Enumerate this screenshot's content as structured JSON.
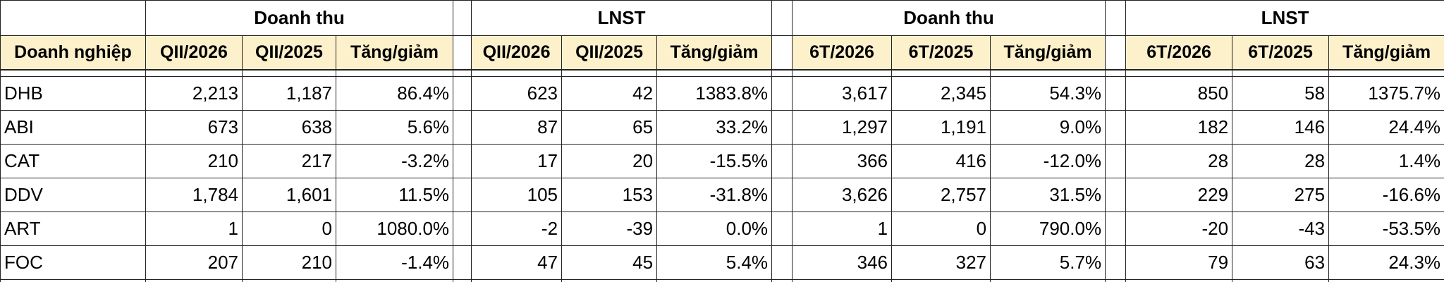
{
  "table": {
    "groups": [
      "Doanh thu",
      "LNST",
      "Doanh thu",
      "LNST"
    ],
    "header_label": "Doanh nghiệp",
    "columns": [
      "QII/2026",
      "QII/2025",
      "Tăng/giảm",
      "QII/2026",
      "QII/2025",
      "Tăng/giảm",
      "6T/2026",
      "6T/2025",
      "Tăng/giảm",
      "6T/2026",
      "6T/2025",
      "Tăng/giảm"
    ],
    "rows": [
      [
        "DHB",
        "2,213",
        "1,187",
        "86.4%",
        "623",
        "42",
        "1383.8%",
        "3,617",
        "2,345",
        "54.3%",
        "850",
        "58",
        "1375.7%"
      ],
      [
        "ABI",
        "673",
        "638",
        "5.6%",
        "87",
        "65",
        "33.2%",
        "1,297",
        "1,191",
        "9.0%",
        "182",
        "146",
        "24.4%"
      ],
      [
        "CAT",
        "210",
        "217",
        "-3.2%",
        "17",
        "20",
        "-15.5%",
        "366",
        "416",
        "-12.0%",
        "28",
        "28",
        "1.4%"
      ],
      [
        "DDV",
        "1,784",
        "1,601",
        "11.5%",
        "105",
        "153",
        "-31.8%",
        "3,626",
        "2,757",
        "31.5%",
        "229",
        "275",
        "-16.6%"
      ],
      [
        "ART",
        "1",
        "0",
        "1080.0%",
        "-2",
        "-39",
        "0.0%",
        "1",
        "0",
        "790.0%",
        "-20",
        "-43",
        "-53.5%"
      ],
      [
        "FOC",
        "207",
        "210",
        "-1.4%",
        "47",
        "45",
        "5.4%",
        "346",
        "327",
        "5.7%",
        "79",
        "63",
        "24.3%"
      ]
    ]
  }
}
